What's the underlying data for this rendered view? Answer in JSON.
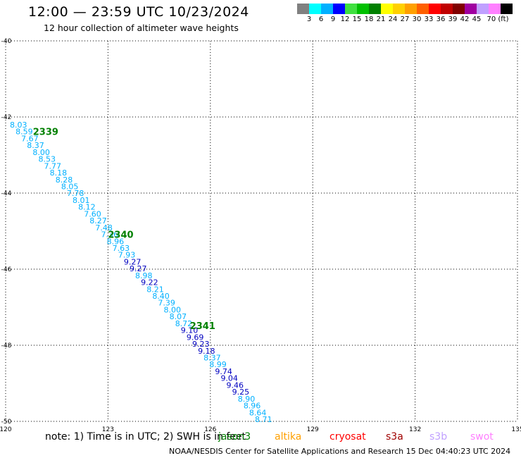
{
  "header": {
    "title": "12:00 — 23:59 UTC 10/23/2024",
    "subtitle": "12 hour collection of altimeter wave heights"
  },
  "color_scale": {
    "labels": [
      "3",
      "6",
      "9",
      "12",
      "15",
      "18",
      "21",
      "24",
      "27",
      "30",
      "33",
      "36",
      "39",
      "42",
      "45",
      "70 (ft)"
    ],
    "colors": [
      "#808080",
      "#00ffff",
      "#00b0ff",
      "#0000ff",
      "#40e040",
      "#00c000",
      "#008000",
      "#ffff00",
      "#ffd000",
      "#ffa000",
      "#ff6000",
      "#ff0000",
      "#c00000",
      "#800000",
      "#a000a0",
      "#c0a0ff",
      "#ff80ff",
      "#000000"
    ]
  },
  "map": {
    "lon_ticks": [
      "120",
      "123",
      "126",
      "129",
      "132",
      "135"
    ],
    "lat_ticks": [
      "-40",
      "-42",
      "-44",
      "-46",
      "-48",
      "-50"
    ],
    "lon_range": [
      120,
      135
    ],
    "lat_range": [
      -40,
      -50
    ],
    "pass_labels": [
      {
        "text": "2339",
        "lon": 120.8,
        "lat": -42.4
      },
      {
        "text": "2340",
        "lon": 123.0,
        "lat": -45.1
      },
      {
        "text": "2341",
        "lon": 125.4,
        "lat": -47.5
      }
    ],
    "wave_heights": [
      {
        "v": "8.03",
        "c": "#00b0ff"
      },
      {
        "v": "8.59",
        "c": "#00b0ff"
      },
      {
        "v": "7.67",
        "c": "#00b0ff"
      },
      {
        "v": "8.37",
        "c": "#00b0ff"
      },
      {
        "v": "8.00",
        "c": "#00b0ff"
      },
      {
        "v": "8.53",
        "c": "#00b0ff"
      },
      {
        "v": "7.77",
        "c": "#00b0ff"
      },
      {
        "v": "8.18",
        "c": "#00b0ff"
      },
      {
        "v": "8.28",
        "c": "#00b0ff"
      },
      {
        "v": "8.05",
        "c": "#00b0ff"
      },
      {
        "v": "7.78",
        "c": "#00b0ff"
      },
      {
        "v": "8.01",
        "c": "#00b0ff"
      },
      {
        "v": "8.12",
        "c": "#00b0ff"
      },
      {
        "v": "7.60",
        "c": "#00b0ff"
      },
      {
        "v": "8.27",
        "c": "#00b0ff"
      },
      {
        "v": "7.48",
        "c": "#00b0ff"
      },
      {
        "v": "7.36",
        "c": "#00b0ff"
      },
      {
        "v": "8.96",
        "c": "#00b0ff"
      },
      {
        "v": "7.63",
        "c": "#00b0ff"
      },
      {
        "v": "7.93",
        "c": "#00b0ff"
      },
      {
        "v": "9.27",
        "c": "#0000c0"
      },
      {
        "v": "9.27",
        "c": "#0000c0"
      },
      {
        "v": "8.98",
        "c": "#00b0ff"
      },
      {
        "v": "9.22",
        "c": "#0000c0"
      },
      {
        "v": "8.21",
        "c": "#00b0ff"
      },
      {
        "v": "8.40",
        "c": "#00b0ff"
      },
      {
        "v": "7.39",
        "c": "#00b0ff"
      },
      {
        "v": "8.00",
        "c": "#00b0ff"
      },
      {
        "v": "8.07",
        "c": "#00b0ff"
      },
      {
        "v": "8.72",
        "c": "#00b0ff"
      },
      {
        "v": "9.10",
        "c": "#0000c0"
      },
      {
        "v": "9.69",
        "c": "#0000c0"
      },
      {
        "v": "9.23",
        "c": "#0000c0"
      },
      {
        "v": "9.18",
        "c": "#0000c0"
      },
      {
        "v": "8.37",
        "c": "#00b0ff"
      },
      {
        "v": "8.99",
        "c": "#00b0ff"
      },
      {
        "v": "9.74",
        "c": "#0000c0"
      },
      {
        "v": "9.04",
        "c": "#0000c0"
      },
      {
        "v": "9.46",
        "c": "#0000c0"
      },
      {
        "v": "9.25",
        "c": "#0000c0"
      },
      {
        "v": "8.90",
        "c": "#00b0ff"
      },
      {
        "v": "8.96",
        "c": "#00b0ff"
      },
      {
        "v": "8.64",
        "c": "#00b0ff"
      },
      {
        "v": "8.71",
        "c": "#00b0ff"
      }
    ]
  },
  "footer": {
    "note": "note:  1) Time is in UTC; 2) SWH is in feet",
    "satellites": [
      {
        "name": "jason3",
        "color": "#008000"
      },
      {
        "name": "altika",
        "color": "#ffa000"
      },
      {
        "name": "cryosat",
        "color": "#ff0000"
      },
      {
        "name": "s3a",
        "color": "#a00000"
      },
      {
        "name": "s3b",
        "color": "#c0a0ff"
      },
      {
        "name": "swot",
        "color": "#ff80ff"
      }
    ],
    "credit": "NOAA/NESDIS Center for Satellite Applications and Research   15 Dec 04:40:23 UTC 2024"
  }
}
